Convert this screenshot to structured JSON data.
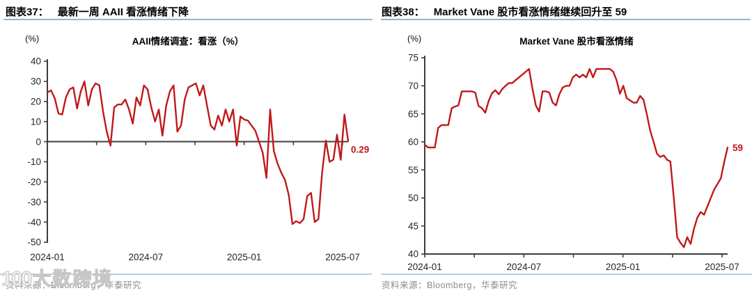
{
  "panels": [
    {
      "fig_tag": "图表37：",
      "fig_title": "最新一周 AAII 看涨情绪下降",
      "source": "资料来源：Bloomberg，华泰研究"
    },
    {
      "fig_tag": "图表38：",
      "fig_title": "Market Vane 股市看涨情绪继续回升至 59",
      "source": "资料来源：Bloomberg，华泰研究"
    }
  ],
  "watermark": {
    "logo_text": "100",
    "text": "大数跨境"
  },
  "colors": {
    "line_red": "#c1181b",
    "axis": "#3c3c3c",
    "tick_text": "#262626",
    "header_rule": "#9bb3cb",
    "source_rule": "#bccede",
    "source_text": "#8a8a8a",
    "end_label": "#c1181b"
  },
  "chart_data": [
    {
      "type": "line",
      "title": "AAII情绪调查：看涨（%）",
      "unit_label": "(%)",
      "xlabel": "",
      "ylabel": "(%)",
      "ylim": [
        -50,
        40
      ],
      "y_ticks": [
        40,
        30,
        20,
        10,
        0,
        -10,
        -20,
        -30,
        -40,
        -50
      ],
      "x_tick_labels": [
        "2024-01",
        "2024-07",
        "2025-01",
        "2025-07"
      ],
      "minor_x_ticks": 7,
      "axis_at_zero": true,
      "grid": "off",
      "legend": "none",
      "end_label": "0.29",
      "last_value": 0.29,
      "values": [
        24.5,
        25.5,
        21.5,
        14,
        13.5,
        22,
        26,
        27,
        16.5,
        25,
        30,
        18,
        26,
        29,
        28,
        15,
        5,
        -2,
        17,
        18.5,
        18.5,
        21,
        16,
        9,
        22,
        18,
        28,
        26,
        17,
        10,
        16,
        3,
        18,
        25,
        28,
        5,
        8,
        21,
        27,
        28,
        29,
        23,
        28,
        18,
        8,
        6,
        13,
        8,
        16,
        10,
        16,
        -2,
        12.5,
        11,
        10.5,
        8,
        5.5,
        0,
        -5.5,
        -18,
        16,
        -4.7,
        -11,
        -15.5,
        -19,
        -26.5,
        -41,
        -39.5,
        -40.5,
        -38.5,
        -27,
        -25.5,
        -40,
        -38.5,
        -15,
        0.5,
        -10,
        -9,
        3.5,
        -9,
        13.5,
        0.29
      ]
    },
    {
      "type": "line",
      "title": "Market Vane 股市看涨情绪",
      "unit_label": "(%)",
      "xlabel": "",
      "ylabel": "(%)",
      "ylim": [
        40,
        75
      ],
      "y_ticks": [
        75,
        70,
        65,
        60,
        55,
        50,
        45,
        40
      ],
      "x_tick_labels": [
        "2024-01",
        "2024-07",
        "2025-01",
        "2025-07"
      ],
      "minor_x_ticks": 7,
      "axis_at_zero": false,
      "grid": "off",
      "legend": "none",
      "end_label": "59",
      "last_value": 59,
      "values": [
        59.5,
        59,
        59,
        59,
        62.5,
        63,
        63,
        63,
        66,
        66.3,
        66.5,
        69,
        69,
        69,
        69,
        68.8,
        66.4,
        66,
        65.2,
        67.3,
        68.7,
        69.2,
        68.5,
        69.4,
        70,
        70.5,
        70.5,
        71,
        71.5,
        72,
        72.5,
        73,
        69.5,
        66.5,
        65.4,
        69,
        69,
        68.8,
        67,
        66.5,
        68.5,
        69.7,
        70,
        70,
        71.5,
        72,
        71.5,
        72,
        71.5,
        73,
        71.5,
        73,
        73,
        73,
        73,
        73,
        72.5,
        71,
        68.6,
        70,
        67.8,
        67.4,
        67,
        67,
        68.2,
        67.5,
        64.9,
        62,
        60,
        57.9,
        57.3,
        57.6,
        56.8,
        56.5,
        50,
        43,
        42,
        41.2,
        43,
        41.8,
        44.5,
        46.5,
        47.5,
        47,
        48.5,
        50,
        51.5,
        52.5,
        53.5,
        56.5,
        59
      ]
    }
  ]
}
